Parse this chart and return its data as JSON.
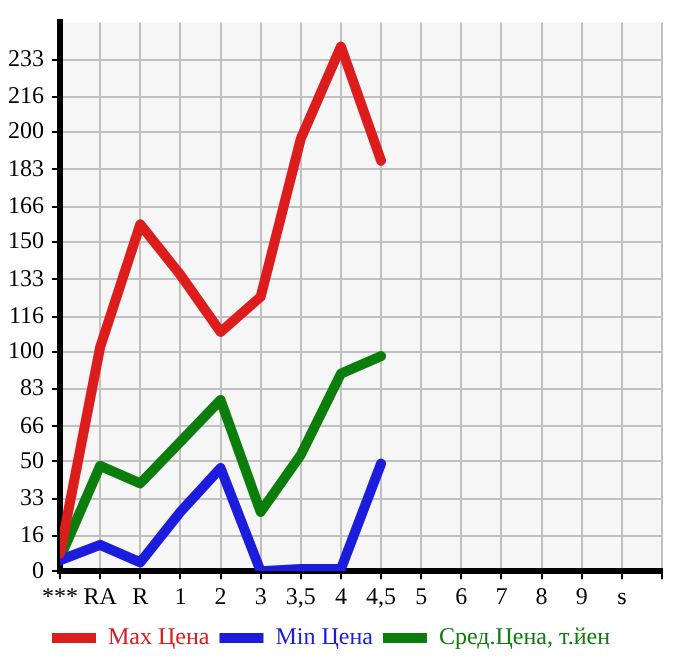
{
  "chart_data": {
    "type": "line",
    "categories": [
      "***",
      "RA",
      "R",
      "1",
      "2",
      "3",
      "3,5",
      "4",
      "4,5",
      "5",
      "6",
      "7",
      "8",
      "9",
      "s"
    ],
    "series": [
      {
        "name": "Max Цена",
        "color": "#dd1c1c",
        "values": [
          8,
          102,
          158,
          135,
          109,
          125,
          197,
          239,
          187,
          null,
          null,
          null,
          null,
          null,
          null
        ]
      },
      {
        "name": "Min Цена",
        "color": "#1c1cdd",
        "values": [
          5,
          12,
          4,
          27,
          47,
          0,
          1,
          1,
          49,
          null,
          null,
          null,
          null,
          null,
          null
        ]
      },
      {
        "name": "Сред.Цена, т.йен",
        "color": "#0b7d0b",
        "values": [
          6,
          48,
          40,
          59,
          78,
          27,
          53,
          90,
          98,
          null,
          null,
          null,
          null,
          null,
          null
        ]
      }
    ],
    "ylim": [
      0,
      250
    ],
    "yticks": [
      0,
      16,
      33,
      50,
      66,
      83,
      100,
      116,
      133,
      150,
      166,
      183,
      200,
      216,
      233
    ],
    "grid": true,
    "legend": "bottom",
    "marker": "none",
    "line_style": "solid"
  }
}
